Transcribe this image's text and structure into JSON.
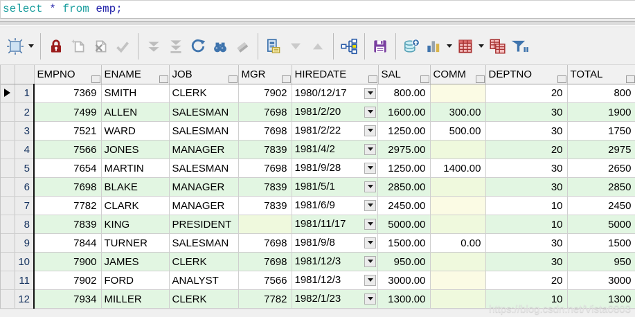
{
  "editor": {
    "tokens": [
      {
        "type": "keyword",
        "text": "select"
      },
      {
        "type": "plain",
        "text": " * "
      },
      {
        "type": "keyword",
        "text": "from"
      },
      {
        "type": "plain",
        "text": " emp;"
      }
    ]
  },
  "toolbar": {
    "icons": [
      {
        "name": "dataset-grid-icon",
        "enabled": true
      },
      {
        "name": "dataset-dropdown-icon",
        "enabled": true
      },
      {
        "name": "lock-icon",
        "enabled": true
      },
      {
        "name": "insert-record-icon",
        "enabled": false
      },
      {
        "name": "delete-record-icon",
        "enabled": false
      },
      {
        "name": "post-edit-check-icon",
        "enabled": false
      },
      {
        "name": "fetch-next-icon",
        "enabled": false
      },
      {
        "name": "fetch-all-icon",
        "enabled": false
      },
      {
        "name": "refresh-icon",
        "enabled": true
      },
      {
        "name": "find-icon",
        "enabled": true
      },
      {
        "name": "eraser-icon",
        "enabled": false
      },
      {
        "name": "single-record-view-icon",
        "enabled": true
      },
      {
        "name": "previous-record-icon",
        "enabled": false
      },
      {
        "name": "next-record-icon",
        "enabled": false
      },
      {
        "name": "foreign-key-tree-icon",
        "enabled": true
      },
      {
        "name": "save-icon",
        "enabled": true
      },
      {
        "name": "export-data-icon",
        "enabled": true
      },
      {
        "name": "chart-icon",
        "enabled": true
      },
      {
        "name": "chart-dropdown-icon",
        "enabled": true
      },
      {
        "name": "grid-view-icon",
        "enabled": true
      },
      {
        "name": "grid-view-dropdown-icon",
        "enabled": true
      },
      {
        "name": "copy-grid-icon",
        "enabled": true
      },
      {
        "name": "filter-icon",
        "enabled": true
      }
    ]
  },
  "grid": {
    "columns": [
      {
        "key": "EMPNO",
        "label": "EMPNO",
        "align": "right"
      },
      {
        "key": "ENAME",
        "label": "ENAME",
        "align": "left"
      },
      {
        "key": "JOB",
        "label": "JOB",
        "align": "left"
      },
      {
        "key": "MGR",
        "label": "MGR",
        "align": "right"
      },
      {
        "key": "HIREDATE",
        "label": "HIREDATE",
        "align": "left"
      },
      {
        "key": "SAL",
        "label": "SAL",
        "align": "right"
      },
      {
        "key": "COMM",
        "label": "COMM",
        "align": "right"
      },
      {
        "key": "DEPTNO",
        "label": "DEPTNO",
        "align": "right"
      },
      {
        "key": "TOTAL",
        "label": "TOTAL",
        "align": "right"
      }
    ],
    "rows": [
      {
        "num": "1",
        "current": true,
        "cells": {
          "EMPNO": "7369",
          "ENAME": "SMITH",
          "JOB": "CLERK",
          "MGR": "7902",
          "HIREDATE": "1980/12/17",
          "SAL": "800.00",
          "COMM": "",
          "DEPTNO": "20",
          "TOTAL": "800"
        }
      },
      {
        "num": "2",
        "current": false,
        "cells": {
          "EMPNO": "7499",
          "ENAME": "ALLEN",
          "JOB": "SALESMAN",
          "MGR": "7698",
          "HIREDATE": "1981/2/20",
          "SAL": "1600.00",
          "COMM": "300.00",
          "DEPTNO": "30",
          "TOTAL": "1900"
        }
      },
      {
        "num": "3",
        "current": false,
        "cells": {
          "EMPNO": "7521",
          "ENAME": "WARD",
          "JOB": "SALESMAN",
          "MGR": "7698",
          "HIREDATE": "1981/2/22",
          "SAL": "1250.00",
          "COMM": "500.00",
          "DEPTNO": "30",
          "TOTAL": "1750"
        }
      },
      {
        "num": "4",
        "current": false,
        "cells": {
          "EMPNO": "7566",
          "ENAME": "JONES",
          "JOB": "MANAGER",
          "MGR": "7839",
          "HIREDATE": "1981/4/2",
          "SAL": "2975.00",
          "COMM": "",
          "DEPTNO": "20",
          "TOTAL": "2975"
        }
      },
      {
        "num": "5",
        "current": false,
        "cells": {
          "EMPNO": "7654",
          "ENAME": "MARTIN",
          "JOB": "SALESMAN",
          "MGR": "7698",
          "HIREDATE": "1981/9/28",
          "SAL": "1250.00",
          "COMM": "1400.00",
          "DEPTNO": "30",
          "TOTAL": "2650"
        }
      },
      {
        "num": "6",
        "current": false,
        "cells": {
          "EMPNO": "7698",
          "ENAME": "BLAKE",
          "JOB": "MANAGER",
          "MGR": "7839",
          "HIREDATE": "1981/5/1",
          "SAL": "2850.00",
          "COMM": "",
          "DEPTNO": "30",
          "TOTAL": "2850"
        }
      },
      {
        "num": "7",
        "current": false,
        "cells": {
          "EMPNO": "7782",
          "ENAME": "CLARK",
          "JOB": "MANAGER",
          "MGR": "7839",
          "HIREDATE": "1981/6/9",
          "SAL": "2450.00",
          "COMM": "",
          "DEPTNO": "10",
          "TOTAL": "2450"
        }
      },
      {
        "num": "8",
        "current": false,
        "cells": {
          "EMPNO": "7839",
          "ENAME": "KING",
          "JOB": "PRESIDENT",
          "MGR": "",
          "HIREDATE": "1981/11/17",
          "SAL": "5000.00",
          "COMM": "",
          "DEPTNO": "10",
          "TOTAL": "5000"
        }
      },
      {
        "num": "9",
        "current": false,
        "cells": {
          "EMPNO": "7844",
          "ENAME": "TURNER",
          "JOB": "SALESMAN",
          "MGR": "7698",
          "HIREDATE": "1981/9/8",
          "SAL": "1500.00",
          "COMM": "0.00",
          "DEPTNO": "30",
          "TOTAL": "1500"
        }
      },
      {
        "num": "10",
        "current": false,
        "cells": {
          "EMPNO": "7900",
          "ENAME": "JAMES",
          "JOB": "CLERK",
          "MGR": "7698",
          "HIREDATE": "1981/12/3",
          "SAL": "950.00",
          "COMM": "",
          "DEPTNO": "30",
          "TOTAL": "950"
        }
      },
      {
        "num": "11",
        "current": false,
        "cells": {
          "EMPNO": "7902",
          "ENAME": "FORD",
          "JOB": "ANALYST",
          "MGR": "7566",
          "HIREDATE": "1981/12/3",
          "SAL": "3000.00",
          "COMM": "",
          "DEPTNO": "20",
          "TOTAL": "3000"
        }
      },
      {
        "num": "12",
        "current": false,
        "cells": {
          "EMPNO": "7934",
          "ENAME": "MILLER",
          "JOB": "CLERK",
          "MGR": "7782",
          "HIREDATE": "1982/1/23",
          "SAL": "1300.00",
          "COMM": "",
          "DEPTNO": "10",
          "TOTAL": "1300"
        }
      }
    ]
  },
  "watermark": "https://blog.csdn.net/Vista0803",
  "colors": {
    "keyword_teal": "#1b9e9e",
    "identifier_navy": "#2323aa",
    "row_alt_green": "#e2f6e2",
    "null_cell_yellow": "#fbfbe4",
    "null_cell_green_row": "#eff9dd",
    "lock_red": "#9b1c1c",
    "save_purple": "#7a3fa0",
    "toolbar_blue": "#3f74ad",
    "grid_red": "#a83232"
  }
}
